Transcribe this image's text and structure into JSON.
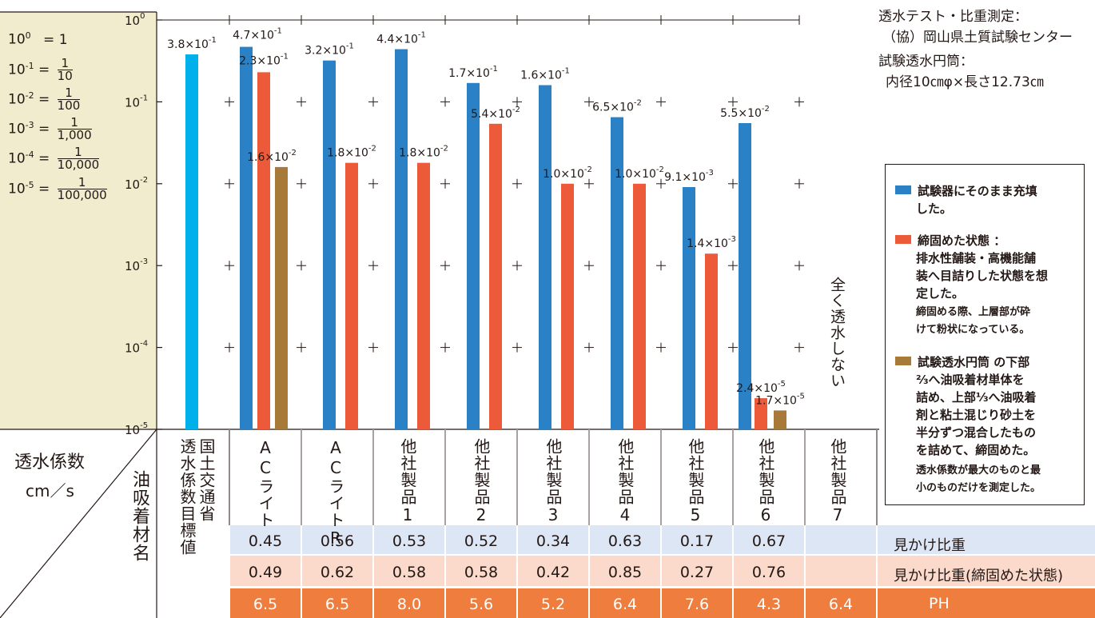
{
  "colors": {
    "blue": "#2a81c6",
    "red": "#ec5a3a",
    "brown": "#a87a3a",
    "cyan": "#00b0ea",
    "row1": "#dde6f4",
    "row2": "#fbd9cb",
    "row3": "#ef7d3e",
    "grid": "#231815",
    "bg": "#f1ecce"
  },
  "conversions": [
    {
      "lhs": "10",
      "exp": "0",
      "rhs": "= 1",
      "num": "",
      "den": ""
    },
    {
      "lhs": "10",
      "exp": "-1",
      "rhs": "=",
      "num": "1",
      "den": "10"
    },
    {
      "lhs": "10",
      "exp": "-2",
      "rhs": "=",
      "num": "1",
      "den": "100"
    },
    {
      "lhs": "10",
      "exp": "-3",
      "rhs": "=",
      "num": "1",
      "den": "1,000"
    },
    {
      "lhs": "10",
      "exp": "-4",
      "rhs": "=",
      "num": "1",
      "den": "10,000"
    },
    {
      "lhs": "10",
      "exp": "-5",
      "rhs": "=",
      "num": "1",
      "den": "100,000"
    }
  ],
  "info": {
    "line1": "透水テスト・比重測定：",
    "line2": "（協）岡山県土質試験センター",
    "line3": "試験透水円筒：",
    "line4": "内径10㎝φ×長さ12.73㎝"
  },
  "legend": {
    "blue_line1": "試験器にそのまま充填",
    "blue_line2": "した。",
    "red_line1": "締固めた状態 ：",
    "red_line2": "排水性舗装・高機能舗",
    "red_line3": "装へ目詰りした状態を想",
    "red_line4": "定した。",
    "red_line5": "締固める際、上層部が砕",
    "red_line6": "けて粉状になっている。",
    "brown_line1": "試験透水円筒 の下部",
    "brown_line2": "⅔へ油吸着材単体を",
    "brown_line3": "詰め、上部⅓へ油吸着",
    "brown_line4": "剤と粘土混じり砂土を",
    "brown_line5": "半分ずつ混合したもの",
    "brown_line6": "を詰めて、締固めた。",
    "note1": "透水係数が最大のものと最",
    "note2": "小のものだけを測定した。"
  },
  "header_left": {
    "coef_label": "透水係数",
    "unit_label": "cm／s",
    "material_label": "油吸着材名"
  },
  "no_permeation": "全く透水しない",
  "rows": {
    "density_label": "見かけ比重",
    "density": [
      "0.45",
      "0.56",
      "0.53",
      "0.52",
      "0.34",
      "0.63",
      "0.17",
      "0.67",
      ""
    ],
    "density_compact_label": "見かけ比重(締固めた状態)",
    "density_compact": [
      "0.49",
      "0.62",
      "0.58",
      "0.58",
      "0.42",
      "0.85",
      "0.27",
      "0.76",
      ""
    ],
    "ph_label": "PH",
    "ph": [
      "6.5",
      "6.5",
      "8.0",
      "5.6",
      "5.2",
      "6.4",
      "7.6",
      "4.3",
      "6.4"
    ]
  },
  "chart_data": {
    "type": "bar",
    "y_scale": "log",
    "ylim": [
      1e-05,
      1
    ],
    "yticks": [
      "10^0",
      "10^-1",
      "10^-2",
      "10^-3",
      "10^-4",
      "10^-5"
    ],
    "ylabel": "透水係数 cm／s",
    "xlabel": "油吸着材名",
    "categories": [
      {
        "label": "国土交通省",
        "label2": "透水係数目標値"
      },
      {
        "label": "ACライト",
        "label2": ""
      },
      {
        "label": "ACライトR",
        "label2": ""
      },
      {
        "label": "他社製品1",
        "label2": ""
      },
      {
        "label": "他社製品2",
        "label2": ""
      },
      {
        "label": "他社製品3",
        "label2": ""
      },
      {
        "label": "他社製品4",
        "label2": ""
      },
      {
        "label": "他社製品5",
        "label2": ""
      },
      {
        "label": "他社製品6",
        "label2": ""
      },
      {
        "label": "他社製品7",
        "label2": ""
      }
    ],
    "bars": [
      {
        "cat": 0,
        "series": "target",
        "value": 0.38,
        "label_mant": "3.8",
        "label_exp": "-1"
      },
      {
        "cat": 1,
        "series": "filled",
        "value": 0.47,
        "label_mant": "4.7",
        "label_exp": "-1"
      },
      {
        "cat": 1,
        "series": "compacted",
        "value": 0.23,
        "label_mant": "2.3",
        "label_exp": "-1"
      },
      {
        "cat": 1,
        "series": "mixed",
        "value": 0.016,
        "label_mant": "1.6",
        "label_exp": "-2"
      },
      {
        "cat": 2,
        "series": "filled",
        "value": 0.32,
        "label_mant": "3.2",
        "label_exp": "-1"
      },
      {
        "cat": 2,
        "series": "compacted",
        "value": 0.018,
        "label_mant": "1.8",
        "label_exp": "-2"
      },
      {
        "cat": 3,
        "series": "filled",
        "value": 0.44,
        "label_mant": "4.4",
        "label_exp": "-1"
      },
      {
        "cat": 3,
        "series": "compacted",
        "value": 0.018,
        "label_mant": "1.8",
        "label_exp": "-2"
      },
      {
        "cat": 4,
        "series": "filled",
        "value": 0.17,
        "label_mant": "1.7",
        "label_exp": "-1"
      },
      {
        "cat": 4,
        "series": "compacted",
        "value": 0.054,
        "label_mant": "5.4",
        "label_exp": "-2"
      },
      {
        "cat": 5,
        "series": "filled",
        "value": 0.16,
        "label_mant": "1.6",
        "label_exp": "-1"
      },
      {
        "cat": 5,
        "series": "compacted",
        "value": 0.01,
        "label_mant": "1.0",
        "label_exp": "-2"
      },
      {
        "cat": 6,
        "series": "filled",
        "value": 0.065,
        "label_mant": "6.5",
        "label_exp": "-2"
      },
      {
        "cat": 6,
        "series": "compacted",
        "value": 0.01,
        "label_mant": "1.0",
        "label_exp": "-2"
      },
      {
        "cat": 7,
        "series": "filled",
        "value": 0.0091,
        "label_mant": "9.1",
        "label_exp": "-3"
      },
      {
        "cat": 7,
        "series": "compacted",
        "value": 0.0014,
        "label_mant": "1.4",
        "label_exp": "-3"
      },
      {
        "cat": 8,
        "series": "filled",
        "value": 0.055,
        "label_mant": "5.5",
        "label_exp": "-2"
      },
      {
        "cat": 8,
        "series": "compacted",
        "value": 2.4e-05,
        "label_mant": "2.4",
        "label_exp": "-5"
      },
      {
        "cat": 8,
        "series": "mixed",
        "value": 1.7e-05,
        "label_mant": "1.7",
        "label_exp": "-5"
      }
    ]
  }
}
